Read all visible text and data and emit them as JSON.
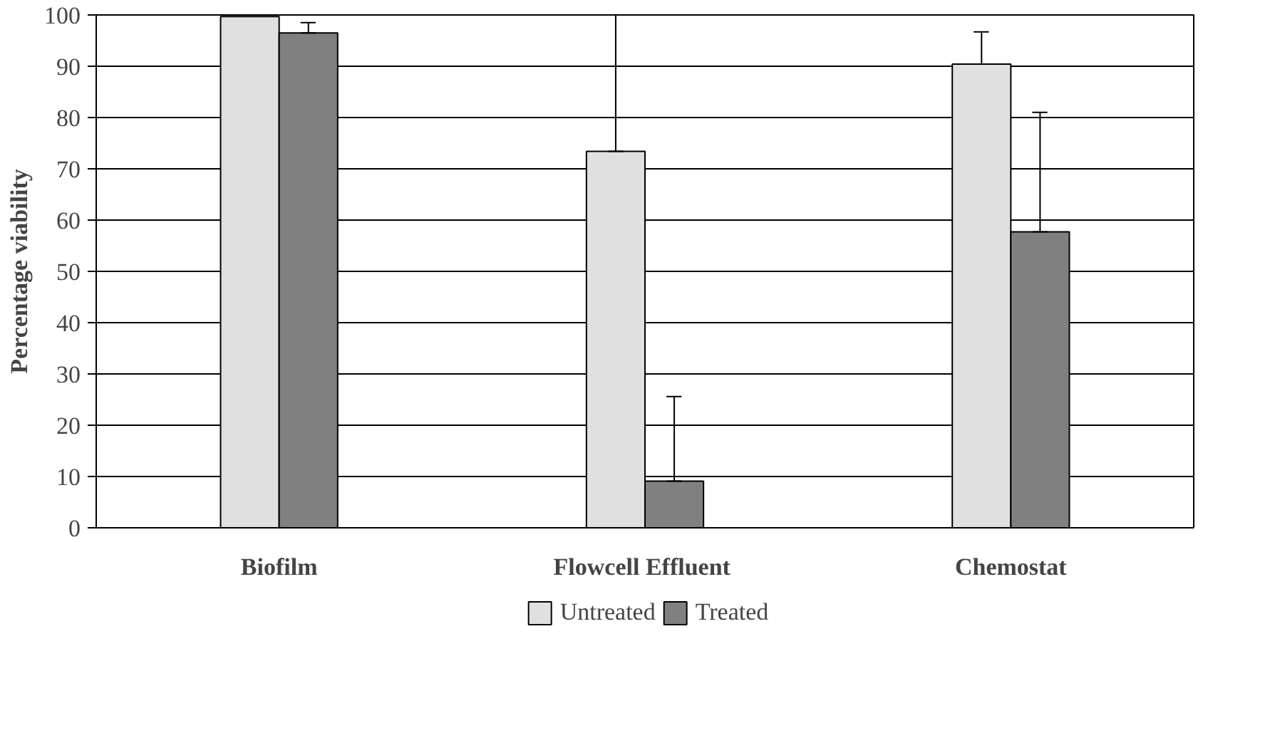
{
  "chart_data": {
    "type": "bar",
    "ylabel": "Percentage viability",
    "categories": [
      "Biofilm",
      "Flowcell  Effluent",
      "Chemostat"
    ],
    "series": [
      {
        "name": "Untreated",
        "color": "#e0e0e0",
        "values": [
          99.7,
          73.4,
          90.4
        ],
        "errors": [
          null,
          [
            73.4,
            100
          ],
          [
            90.4,
            96.7
          ]
        ]
      },
      {
        "name": "Treated",
        "color": "#808080",
        "values": [
          96.5,
          9.1,
          57.7
        ],
        "errors": [
          [
            96.5,
            98.5
          ],
          [
            9.1,
            25.6
          ],
          [
            57.7,
            81
          ]
        ]
      }
    ],
    "ylim": [
      0,
      100
    ],
    "yticks": [
      0,
      10,
      20,
      30,
      40,
      50,
      60,
      70,
      80,
      90,
      100
    ],
    "grid": "y",
    "legend": "bottom"
  }
}
